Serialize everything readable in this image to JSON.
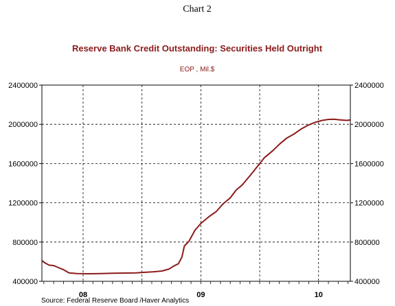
{
  "chart_data": {
    "type": "line",
    "caption": "Chart 2",
    "title": "Reserve Bank Credit Outstanding: Securities Held Outright",
    "subtitle": "EOP , Mil.$",
    "source": "Source:  Federal Reserve Board /Haver Analytics",
    "ylim": [
      400000,
      2400000
    ],
    "y_ticks": [
      400000,
      800000,
      1200000,
      1600000,
      2000000,
      2400000
    ],
    "y_tick_labels": [
      "400000",
      "800000",
      "1200000",
      "1600000",
      "2000000",
      "2400000"
    ],
    "x_range": [
      2007.9,
      2010.52
    ],
    "year_tick_labels": [
      {
        "label": "08",
        "x": 2008.25
      },
      {
        "label": "09",
        "x": 2009.25
      },
      {
        "label": "10",
        "x": 2010.25
      }
    ],
    "vertical_gridlines_at": [
      2008.25,
      2008.75,
      2009.25,
      2009.75,
      2010.25
    ],
    "grid": true,
    "line_color": "#8b1a1a",
    "series": [
      {
        "values": [
          [
            2007.9,
            610000
          ],
          [
            2007.93,
            585000
          ],
          [
            2007.96,
            565000
          ],
          [
            2008.0,
            560000
          ],
          [
            2008.04,
            540000
          ],
          [
            2008.08,
            520000
          ],
          [
            2008.13,
            485000
          ],
          [
            2008.2,
            478000
          ],
          [
            2008.3,
            477000
          ],
          [
            2008.4,
            478000
          ],
          [
            2008.5,
            482000
          ],
          [
            2008.6,
            484000
          ],
          [
            2008.7,
            486000
          ],
          [
            2008.75,
            490000
          ],
          [
            2008.85,
            497000
          ],
          [
            2008.92,
            505000
          ],
          [
            2008.98,
            525000
          ],
          [
            2009.02,
            555000
          ],
          [
            2009.06,
            580000
          ],
          [
            2009.09,
            650000
          ],
          [
            2009.11,
            760000
          ],
          [
            2009.15,
            810000
          ],
          [
            2009.2,
            920000
          ],
          [
            2009.25,
            990000
          ],
          [
            2009.32,
            1060000
          ],
          [
            2009.38,
            1110000
          ],
          [
            2009.44,
            1190000
          ],
          [
            2009.5,
            1250000
          ],
          [
            2009.55,
            1330000
          ],
          [
            2009.6,
            1380000
          ],
          [
            2009.67,
            1480000
          ],
          [
            2009.73,
            1570000
          ],
          [
            2009.79,
            1660000
          ],
          [
            2009.86,
            1730000
          ],
          [
            2009.92,
            1800000
          ],
          [
            2009.98,
            1860000
          ],
          [
            2010.04,
            1900000
          ],
          [
            2010.1,
            1950000
          ],
          [
            2010.16,
            1990000
          ],
          [
            2010.22,
            2020000
          ],
          [
            2010.28,
            2040000
          ],
          [
            2010.33,
            2050000
          ],
          [
            2010.38,
            2052000
          ],
          [
            2010.42,
            2047000
          ],
          [
            2010.46,
            2043000
          ],
          [
            2010.49,
            2040000
          ],
          [
            2010.52,
            2045000
          ]
        ]
      }
    ]
  }
}
